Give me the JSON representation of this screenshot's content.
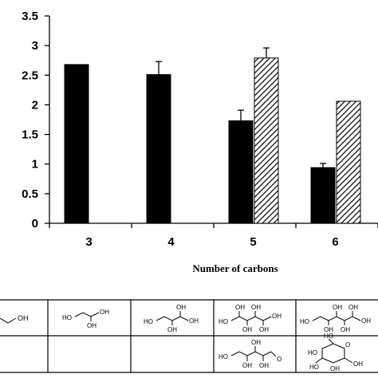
{
  "chart_data": {
    "type": "bar",
    "categories": [
      "3",
      "4",
      "5",
      "6"
    ],
    "xlabel": "Number of carbons",
    "ylabel": "",
    "ylim": [
      0,
      3.5
    ],
    "yticks": [
      "0",
      "0.5",
      "1",
      "1.5",
      "2",
      "2.5",
      "3",
      "3.5"
    ],
    "grid": false,
    "series": [
      {
        "style": "solid",
        "color": "#000000",
        "values": [
          2.68,
          2.51,
          1.73,
          0.94
        ],
        "errors": [
          0,
          0.22,
          0.18,
          0.07
        ]
      },
      {
        "style": "hatched",
        "color": "#000000",
        "values": [
          null,
          null,
          2.79,
          2.06
        ],
        "errors": [
          null,
          null,
          0.17,
          0
        ]
      }
    ]
  },
  "structure_table": {
    "row1": [
      "OH",
      "HO OH OH",
      "HO OH OH OH",
      "HO OH OH OH OH",
      "HO OH OH OH OH OH"
    ],
    "row2": [
      "",
      "",
      "",
      "HO OH OH OH O",
      "HO OH OH OH OH O"
    ],
    "row1_icons": [
      "propanol-structure-icon",
      "glycerol-structure-icon",
      "erythritol-structure-icon",
      "pentitol-structure-icon",
      "hexitol-structure-icon"
    ],
    "row2_icons": [
      "",
      "",
      "",
      "pentose-open-chain-structure-icon",
      "glucopyranose-structure-icon"
    ]
  }
}
